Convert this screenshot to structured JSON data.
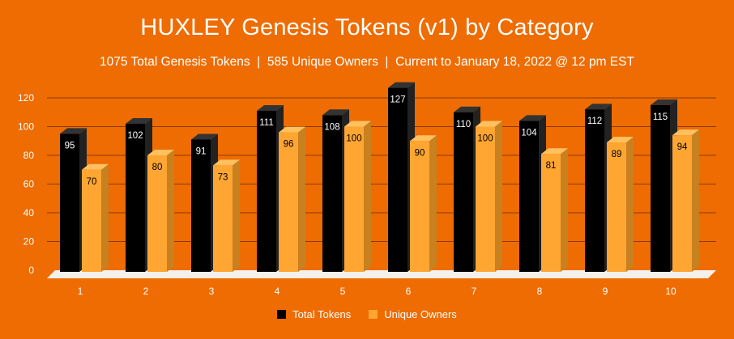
{
  "chart_data": {
    "type": "bar",
    "title": "HUXLEY Genesis Tokens (v1) by Category",
    "subtitle": "1075 Total Genesis Tokens  |  585 Unique Owners  |  Current to January 18, 2022 @ 12 pm EST",
    "categories": [
      "1",
      "2",
      "3",
      "4",
      "5",
      "6",
      "7",
      "8",
      "9",
      "10"
    ],
    "series": [
      {
        "name": "Total Tokens",
        "color": "#000000",
        "side_color": "#222222",
        "top_color": "#333333",
        "label_color": "#ffffff",
        "values": [
          95,
          102,
          91,
          111,
          108,
          127,
          110,
          104,
          112,
          115
        ]
      },
      {
        "name": "Unique Owners",
        "color": "#FFA532",
        "side_color": "#C9801F",
        "top_color": "#FFC060",
        "label_color": "#000000",
        "values": [
          70,
          80,
          73,
          96,
          100,
          90,
          100,
          81,
          89,
          94
        ]
      }
    ],
    "ylim": [
      0,
      120
    ],
    "yticks": [
      "0",
      "20",
      "40",
      "60",
      "80",
      "100",
      "120"
    ],
    "grid": true,
    "legend_position": "bottom",
    "colors": {
      "background": "#EE6C02",
      "gridline": "#8B3A00",
      "floor": "#F5F0EA"
    }
  }
}
